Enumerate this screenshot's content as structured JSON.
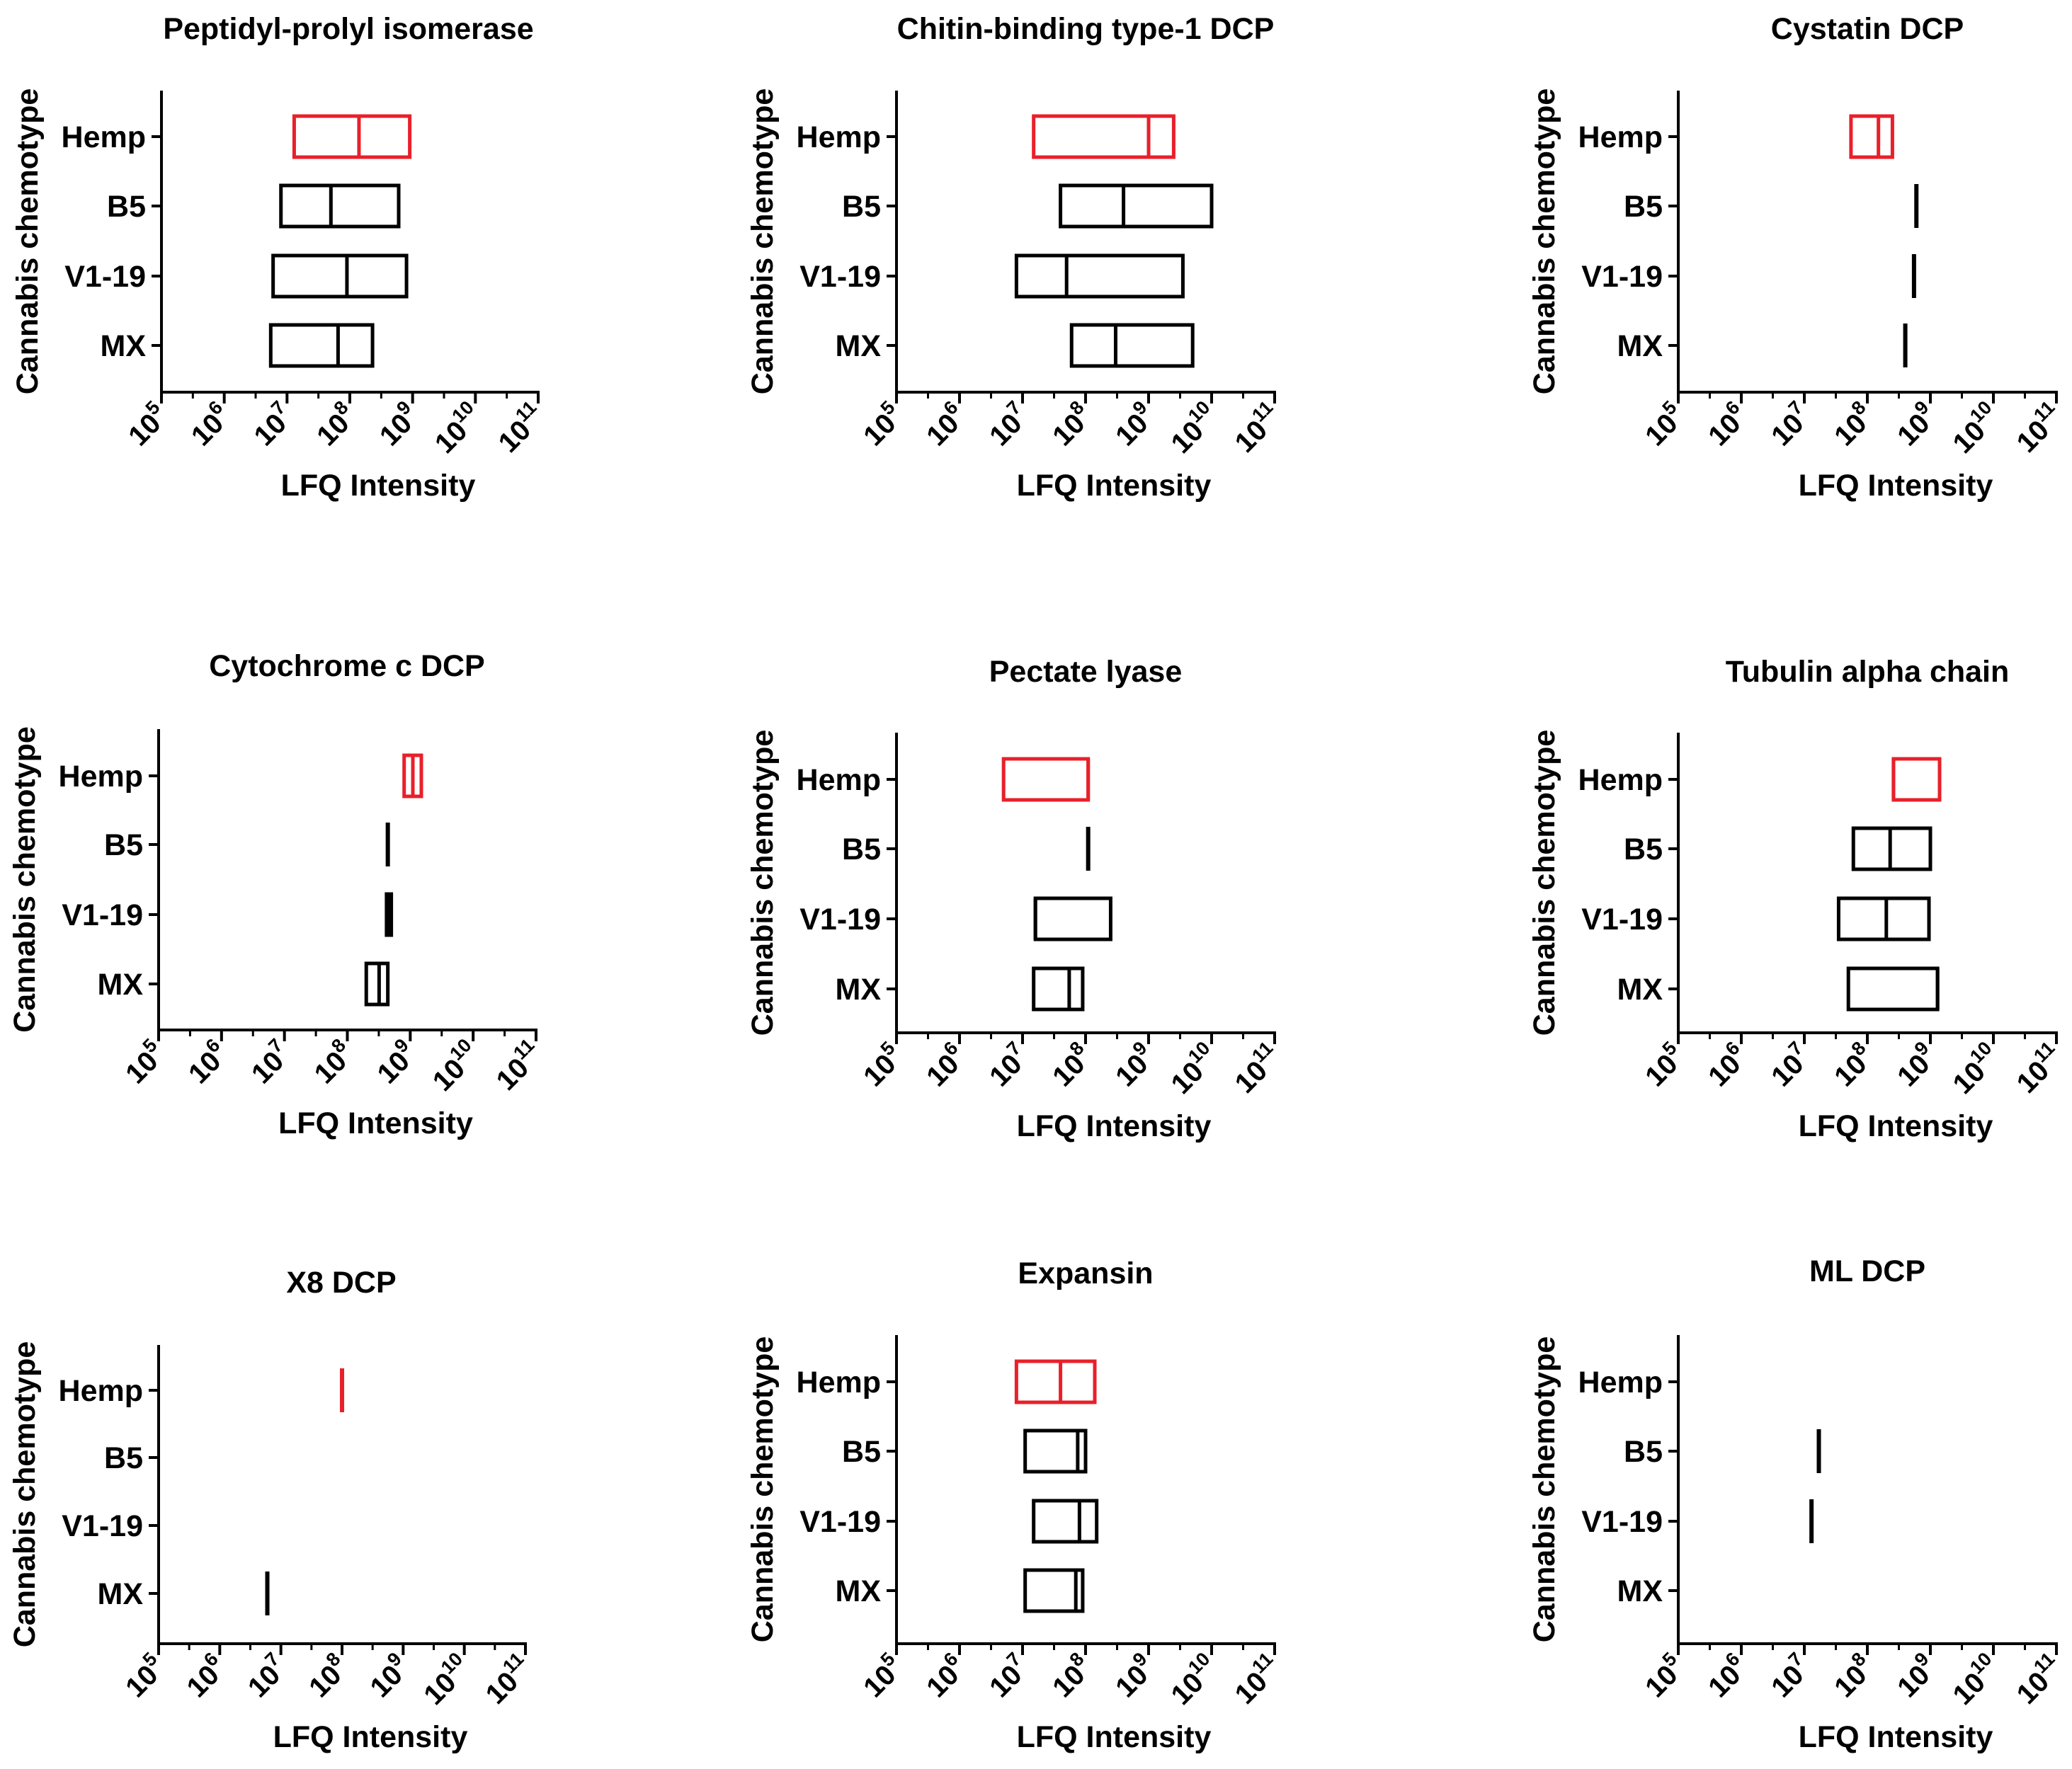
{
  "chart_data": [
    {
      "type": "box",
      "title": "Peptidyl-prolyl isomerase",
      "xlabel": "LFQ Intensity",
      "ylabel": "Cannabis chemotype",
      "x_scale": "log10",
      "xlim": [
        100000,
        100000000000
      ],
      "x_tick_exponents": [
        5,
        6,
        7,
        8,
        9,
        10,
        11
      ],
      "categories": [
        "Hemp",
        "B5",
        "V1-19",
        "MX"
      ],
      "boxes": [
        {
          "category": "Hemp",
          "min": 13000000,
          "median": 140000000,
          "max": 900000000,
          "color": "#e8202a"
        },
        {
          "category": "B5",
          "min": 8000000,
          "median": 50000000,
          "max": 600000000,
          "color": "#000000"
        },
        {
          "category": "V1-19",
          "min": 6000000,
          "median": 90000000,
          "max": 800000000,
          "color": "#000000"
        },
        {
          "category": "MX",
          "min": 5500000,
          "median": 65000000,
          "max": 230000000,
          "color": "#000000"
        }
      ]
    },
    {
      "type": "box",
      "title": "Chitin-binding type-1 DCP",
      "xlabel": "LFQ Intensity",
      "ylabel": "Cannabis chemotype",
      "x_scale": "log10",
      "xlim": [
        100000,
        100000000000
      ],
      "x_tick_exponents": [
        5,
        6,
        7,
        8,
        9,
        10,
        11
      ],
      "categories": [
        "Hemp",
        "B5",
        "V1-19",
        "MX"
      ],
      "boxes": [
        {
          "category": "Hemp",
          "min": 15000000,
          "median": 1000000000,
          "max": 2500000000,
          "color": "#e8202a"
        },
        {
          "category": "B5",
          "min": 40000000,
          "median": 400000000,
          "max": 10000000000,
          "color": "#000000"
        },
        {
          "category": "V1-19",
          "min": 8000000,
          "median": 50000000,
          "max": 3500000000,
          "color": "#000000"
        },
        {
          "category": "MX",
          "min": 60000000,
          "median": 300000000,
          "max": 5000000000,
          "color": "#000000"
        }
      ]
    },
    {
      "type": "box",
      "title": "Cystatin DCP",
      "xlabel": "LFQ Intensity",
      "ylabel": "Cannabis chemotype",
      "x_scale": "log10",
      "xlim": [
        100000,
        100000000000
      ],
      "x_tick_exponents": [
        5,
        6,
        7,
        8,
        9,
        10,
        11
      ],
      "categories": [
        "Hemp",
        "B5",
        "V1-19",
        "MX"
      ],
      "boxes": [
        {
          "category": "Hemp",
          "min": 55000000,
          "median": 150000000,
          "max": 250000000,
          "color": "#e8202a"
        },
        {
          "category": "B5",
          "min": 600000000,
          "median": 600000000,
          "max": 600000000,
          "color": "#000000"
        },
        {
          "category": "V1-19",
          "min": 550000000,
          "median": 550000000,
          "max": 550000000,
          "color": "#000000"
        },
        {
          "category": "MX",
          "min": 400000000,
          "median": 400000000,
          "max": 400000000,
          "color": "#000000"
        }
      ]
    },
    {
      "type": "box",
      "title": "Cytochrome c DCP",
      "xlabel": "LFQ Intensity",
      "ylabel": "Cannabis chemotype",
      "x_scale": "log10",
      "xlim": [
        100000,
        100000000000
      ],
      "x_tick_exponents": [
        5,
        6,
        7,
        8,
        9,
        10,
        11
      ],
      "categories": [
        "Hemp",
        "B5",
        "V1-19",
        "MX"
      ],
      "boxes": [
        {
          "category": "Hemp",
          "min": 800000000,
          "median": 1100000000,
          "max": 1500000000,
          "color": "#e8202a"
        },
        {
          "category": "B5",
          "min": 420000000,
          "median": 440000000,
          "max": 460000000,
          "color": "#000000"
        },
        {
          "category": "V1-19",
          "min": 420000000,
          "median": 450000000,
          "max": 500000000,
          "color": "#000000"
        },
        {
          "category": "MX",
          "min": 200000000,
          "median": 320000000,
          "max": 440000000,
          "color": "#000000"
        }
      ]
    },
    {
      "type": "box",
      "title": "Pectate lyase",
      "xlabel": "LFQ Intensity",
      "ylabel": "Cannabis chemotype",
      "x_scale": "log10",
      "xlim": [
        100000,
        100000000000
      ],
      "x_tick_exponents": [
        5,
        6,
        7,
        8,
        9,
        10,
        11
      ],
      "categories": [
        "Hemp",
        "B5",
        "V1-19",
        "MX"
      ],
      "boxes": [
        {
          "category": "Hemp",
          "min": 5000000,
          "median": 110000000,
          "max": 110000000,
          "color": "#e8202a"
        },
        {
          "category": "B5",
          "min": 110000000,
          "median": 110000000,
          "max": 110000000,
          "color": "#000000"
        },
        {
          "category": "V1-19",
          "min": 16000000,
          "median": 16000000,
          "max": 250000000,
          "color": "#000000"
        },
        {
          "category": "MX",
          "min": 15000000,
          "median": 55000000,
          "max": 90000000,
          "color": "#000000"
        }
      ]
    },
    {
      "type": "box",
      "title": "Tubulin alpha chain",
      "xlabel": "LFQ Intensity",
      "ylabel": "Cannabis chemotype",
      "x_scale": "log10",
      "xlim": [
        100000,
        100000000000
      ],
      "x_tick_exponents": [
        5,
        6,
        7,
        8,
        9,
        10,
        11
      ],
      "categories": [
        "Hemp",
        "B5",
        "V1-19",
        "MX"
      ],
      "boxes": [
        {
          "category": "Hemp",
          "min": 260000000,
          "median": 260000000,
          "max": 1400000000,
          "color": "#e8202a"
        },
        {
          "category": "B5",
          "min": 60000000,
          "median": 230000000,
          "max": 1000000000,
          "color": "#000000"
        },
        {
          "category": "V1-19",
          "min": 35000000,
          "median": 200000000,
          "max": 950000000,
          "color": "#000000"
        },
        {
          "category": "MX",
          "min": 50000000,
          "median": 1300000000,
          "max": 1300000000,
          "color": "#000000"
        }
      ]
    },
    {
      "type": "box",
      "title": "X8 DCP",
      "xlabel": "LFQ Intensity",
      "ylabel": "Cannabis chemotype",
      "x_scale": "log10",
      "xlim": [
        100000,
        100000000000
      ],
      "x_tick_exponents": [
        5,
        6,
        7,
        8,
        9,
        10,
        11
      ],
      "categories": [
        "Hemp",
        "B5",
        "V1-19",
        "MX"
      ],
      "boxes": [
        {
          "category": "Hemp",
          "min": 100000000,
          "median": 100000000,
          "max": 100000000,
          "color": "#e8202a"
        },
        {
          "category": "MX",
          "min": 6000000,
          "median": 6000000,
          "max": 6000000,
          "color": "#000000"
        }
      ]
    },
    {
      "type": "box",
      "title": "Expansin",
      "xlabel": "LFQ Intensity",
      "ylabel": "Cannabis chemotype",
      "x_scale": "log10",
      "xlim": [
        100000,
        100000000000
      ],
      "x_tick_exponents": [
        5,
        6,
        7,
        8,
        9,
        10,
        11
      ],
      "categories": [
        "Hemp",
        "B5",
        "V1-19",
        "MX"
      ],
      "boxes": [
        {
          "category": "Hemp",
          "min": 8000000,
          "median": 40000000,
          "max": 140000000,
          "color": "#e8202a"
        },
        {
          "category": "B5",
          "min": 11000000,
          "median": 75000000,
          "max": 100000000,
          "color": "#000000"
        },
        {
          "category": "V1-19",
          "min": 15000000,
          "median": 80000000,
          "max": 150000000,
          "color": "#000000"
        },
        {
          "category": "MX",
          "min": 11000000,
          "median": 70000000,
          "max": 90000000,
          "color": "#000000"
        }
      ]
    },
    {
      "type": "box",
      "title": "ML DCP",
      "xlabel": "LFQ Intensity",
      "ylabel": "Cannabis chemotype",
      "x_scale": "log10",
      "xlim": [
        100000,
        100000000000
      ],
      "x_tick_exponents": [
        5,
        6,
        7,
        8,
        9,
        10,
        11
      ],
      "categories": [
        "Hemp",
        "B5",
        "V1-19",
        "MX"
      ],
      "boxes": [
        {
          "category": "B5",
          "min": 17000000,
          "median": 17000000,
          "max": 17000000,
          "color": "#000000"
        },
        {
          "category": "V1-19",
          "min": 13000000,
          "median": 13000000,
          "max": 13000000,
          "color": "#000000"
        }
      ]
    }
  ]
}
